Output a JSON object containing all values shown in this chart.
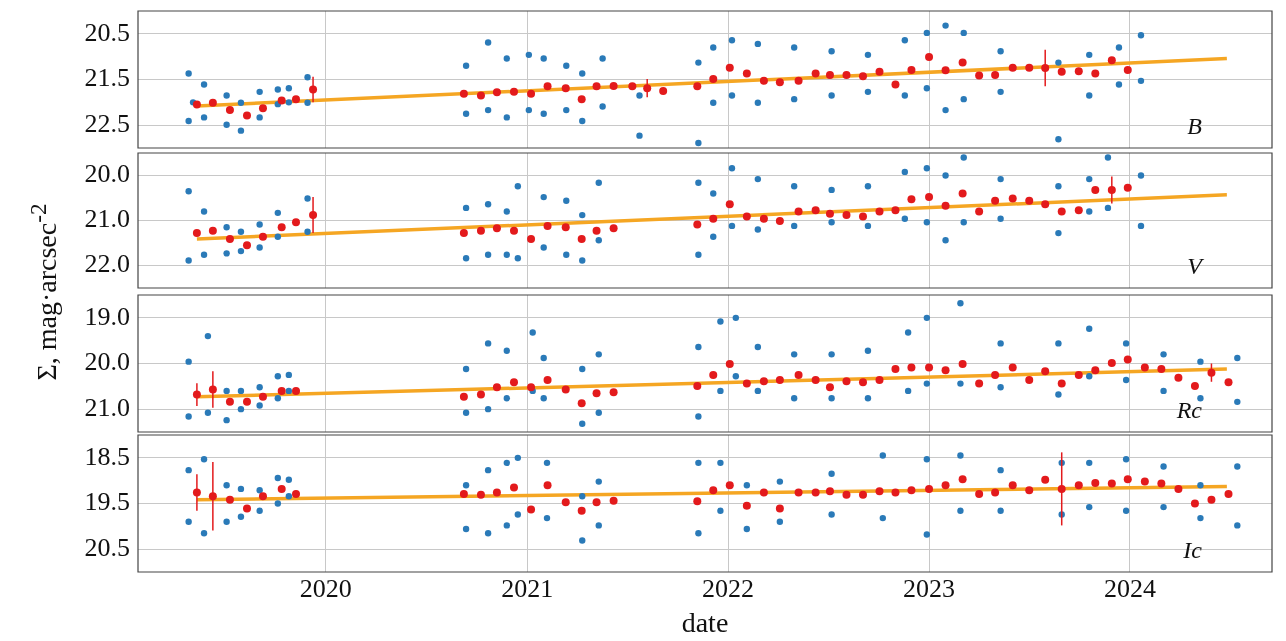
{
  "chart_data": [
    {
      "type": "scatter",
      "ylabel": "Σ, mag·arcsec$^{-2}$",
      "annotations": [
        "B"
      ],
      "xlim": [
        "2019-01-25",
        "2024-09-15"
      ],
      "xticks": [
        "2020",
        "2021",
        "2022",
        "2023",
        "2024"
      ],
      "ylim": [
        23.0,
        20.0
      ],
      "yticks": [
        20.5,
        21.5,
        22.5
      ],
      "grid": true,
      "marker": "circle",
      "tick_labels": "y",
      "series": [
        {
          "type": "scatter",
          "color": "#2a7ab8",
          "x": [
            "2019-04-27",
            "2019-04-27",
            "2019-05-05",
            "2019-05-25",
            "2019-05-25",
            "2019-07-05",
            "2019-07-05",
            "2019-07-31",
            "2019-07-31",
            "2019-09-03",
            "2019-09-03",
            "2019-10-06",
            "2019-10-06",
            "2019-10-26",
            "2019-10-26",
            "2019-11-29",
            "2019-11-29",
            "2020-09-12",
            "2020-09-12",
            "2020-10-22",
            "2020-10-22",
            "2020-11-25",
            "2020-11-25",
            "2021-01-04",
            "2021-01-04",
            "2021-01-31",
            "2021-01-31",
            "2021-03-13",
            "2021-03-13",
            "2021-04-11",
            "2021-04-11",
            "2021-05-18",
            "2021-05-18",
            "2021-07-24",
            "2021-07-24",
            "2021-11-08",
            "2021-11-08",
            "2021-12-05",
            "2021-12-05",
            "2022-01-08",
            "2022-01-08",
            "2022-02-24",
            "2022-02-24",
            "2022-05-01",
            "2022-05-01",
            "2022-07-08",
            "2022-07-08",
            "2022-09-12",
            "2022-09-12",
            "2022-11-18",
            "2022-11-18",
            "2022-12-28",
            "2022-12-28",
            "2023-01-31",
            "2023-01-31",
            "2023-03-05",
            "2023-03-05",
            "2023-05-11",
            "2023-05-11",
            "2023-08-24",
            "2023-08-24",
            "2023-10-19",
            "2023-10-19",
            "2023-12-12",
            "2023-12-12",
            "2024-01-21",
            "2024-01-21"
          ],
          "values": [
            21.37,
            22.41,
            22.0,
            21.61,
            22.33,
            21.85,
            22.49,
            22.01,
            22.62,
            21.77,
            22.33,
            21.72,
            22.04,
            21.69,
            22.0,
            21.45,
            22.01,
            21.2,
            22.25,
            20.69,
            22.17,
            21.04,
            22.33,
            20.96,
            22.17,
            21.04,
            22.25,
            21.2,
            22.17,
            21.37,
            22.41,
            21.04,
            22.09,
            21.85,
            22.73,
            21.13,
            22.89,
            20.8,
            22.01,
            20.64,
            21.85,
            20.72,
            22.01,
            20.8,
            21.93,
            20.88,
            21.85,
            20.96,
            21.77,
            20.64,
            21.85,
            20.48,
            21.69,
            20.32,
            22.17,
            20.48,
            21.93,
            20.88,
            21.77,
            21.13,
            22.81,
            20.96,
            21.85,
            20.8,
            21.61,
            20.53,
            21.53
          ]
        },
        {
          "type": "scatter",
          "color": "#e31a1c",
          "x": [
            "2019-05-12",
            "2019-06-10",
            "2019-07-11",
            "2019-08-11",
            "2019-09-09",
            "2019-10-13",
            "2019-11-08",
            "2019-12-09",
            "2020-09-08",
            "2020-10-09",
            "2020-11-07",
            "2020-12-08",
            "2021-01-08",
            "2021-02-07",
            "2021-03-12",
            "2021-04-10",
            "2021-05-07",
            "2021-06-07",
            "2021-07-11",
            "2021-08-07",
            "2021-09-05",
            "2021-11-06",
            "2021-12-05",
            "2022-01-04",
            "2022-02-04",
            "2022-03-07",
            "2022-04-05",
            "2022-05-09",
            "2022-06-09",
            "2022-07-05",
            "2022-08-04",
            "2022-09-03",
            "2022-10-03",
            "2022-11-01",
            "2022-11-30",
            "2023-01-01",
            "2023-01-31",
            "2023-03-03",
            "2023-04-02",
            "2023-05-01",
            "2023-06-02",
            "2023-07-02",
            "2023-07-31",
            "2023-08-30",
            "2023-09-30",
            "2023-10-30",
            "2023-11-29",
            "2023-12-28"
          ],
          "values": [
            22.05,
            22.01,
            22.17,
            22.29,
            22.13,
            21.96,
            21.93,
            21.72,
            21.81,
            21.85,
            21.78,
            21.77,
            21.81,
            21.65,
            21.69,
            21.93,
            21.65,
            21.64,
            21.65,
            21.69,
            21.75,
            21.65,
            21.49,
            21.24,
            21.37,
            21.53,
            21.56,
            21.53,
            21.37,
            21.4,
            21.4,
            21.43,
            21.33,
            21.61,
            21.29,
            21.01,
            21.3,
            21.13,
            21.41,
            21.4,
            21.24,
            21.24,
            21.25,
            21.33,
            21.32,
            21.37,
            21.08,
            21.29
          ],
          "errors": [
            null,
            null,
            null,
            null,
            null,
            null,
            null,
            0.28,
            null,
            null,
            null,
            null,
            null,
            null,
            null,
            null,
            null,
            null,
            null,
            0.2,
            null,
            null,
            null,
            null,
            null,
            null,
            null,
            null,
            null,
            null,
            null,
            null,
            null,
            null,
            null,
            null,
            null,
            null,
            null,
            null,
            null,
            null,
            0.4,
            null,
            null,
            null,
            null,
            null
          ]
        },
        {
          "type": "line",
          "color": "#f5a623",
          "marker": "none",
          "x": [
            "2019-05-12",
            "2024-06-25"
          ],
          "values": [
            22.08,
            21.04
          ]
        }
      ]
    },
    {
      "type": "scatter",
      "annotations": [
        "V"
      ],
      "xlim": [
        "2019-01-25",
        "2024-09-15"
      ],
      "xticks": [
        "2020",
        "2021",
        "2022",
        "2023",
        "2024"
      ],
      "ylim": [
        22.5,
        19.5
      ],
      "yticks": [
        {
          "value": 20,
          "label": "20.0"
        },
        {
          "value": 21,
          "label": "21.0"
        },
        {
          "value": 22,
          "label": "22.0"
        }
      ],
      "grid": true,
      "marker": "circle",
      "tick_labels": "y",
      "series": [
        {
          "type": "scatter",
          "color": "#2a7ab8",
          "x": [
            "2019-04-27",
            "2019-04-27",
            "2019-05-25",
            "2019-05-25",
            "2019-07-05",
            "2019-07-05",
            "2019-07-31",
            "2019-07-31",
            "2019-09-03",
            "2019-09-03",
            "2019-10-06",
            "2019-10-06",
            "2019-11-29",
            "2019-11-29",
            "2020-09-12",
            "2020-09-12",
            "2020-10-22",
            "2020-10-22",
            "2020-11-25",
            "2020-11-25",
            "2020-12-15",
            "2020-12-15",
            "2021-01-31",
            "2021-01-31",
            "2021-03-13",
            "2021-03-13",
            "2021-04-11",
            "2021-04-11",
            "2021-05-11",
            "2021-05-11",
            "2021-11-08",
            "2021-11-08",
            "2021-12-05",
            "2021-12-05",
            "2022-01-08",
            "2022-01-08",
            "2022-02-24",
            "2022-02-24",
            "2022-05-01",
            "2022-05-01",
            "2022-07-08",
            "2022-07-08",
            "2022-09-12",
            "2022-09-12",
            "2022-11-18",
            "2022-11-18",
            "2022-12-28",
            "2022-12-28",
            "2023-01-31",
            "2023-01-31",
            "2023-03-05",
            "2023-03-05",
            "2023-05-11",
            "2023-05-11",
            "2023-08-24",
            "2023-08-24",
            "2023-10-19",
            "2023-10-19",
            "2023-11-22",
            "2023-11-22",
            "2024-01-21",
            "2024-01-21"
          ],
          "values": [
            20.35,
            21.89,
            20.8,
            21.76,
            21.15,
            21.73,
            21.25,
            21.68,
            21.09,
            21.6,
            20.83,
            21.36,
            20.51,
            21.25,
            20.72,
            21.84,
            20.64,
            21.76,
            20.8,
            21.76,
            20.24,
            21.84,
            20.48,
            21.6,
            20.56,
            21.76,
            20.88,
            21.89,
            20.16,
            21.44,
            20.16,
            21.76,
            20.4,
            21.36,
            19.84,
            21.12,
            20.08,
            21.2,
            20.24,
            21.12,
            20.32,
            21.04,
            20.24,
            21.12,
            19.92,
            20.96,
            19.84,
            21.04,
            20.0,
            21.44,
            19.6,
            21.04,
            20.08,
            20.96,
            20.24,
            21.28,
            20.08,
            20.8,
            19.6,
            20.72,
            20.0,
            21.12
          ]
        },
        {
          "type": "scatter",
          "color": "#e31a1c",
          "x": [
            "2019-05-12",
            "2019-06-10",
            "2019-07-11",
            "2019-08-11",
            "2019-09-09",
            "2019-10-13",
            "2019-11-08",
            "2019-12-09",
            "2020-09-08",
            "2020-10-09",
            "2020-11-07",
            "2020-12-08",
            "2021-01-08",
            "2021-02-07",
            "2021-03-12",
            "2021-04-10",
            "2021-05-07",
            "2021-06-07",
            "2021-11-06",
            "2021-12-05",
            "2022-01-04",
            "2022-02-04",
            "2022-03-07",
            "2022-04-05",
            "2022-05-09",
            "2022-06-09",
            "2022-07-05",
            "2022-08-04",
            "2022-09-03",
            "2022-10-03",
            "2022-11-01",
            "2022-11-30",
            "2023-01-01",
            "2023-01-31",
            "2023-03-03",
            "2023-04-02",
            "2023-05-01",
            "2023-06-02",
            "2023-07-02",
            "2023-07-31",
            "2023-08-30",
            "2023-09-30",
            "2023-10-30",
            "2023-11-29",
            "2023-12-28"
          ],
          "values": [
            21.28,
            21.23,
            21.41,
            21.55,
            21.36,
            21.15,
            21.04,
            20.88,
            21.28,
            21.23,
            21.17,
            21.23,
            21.41,
            21.12,
            21.15,
            21.41,
            21.23,
            21.17,
            21.09,
            20.96,
            20.64,
            20.91,
            20.96,
            21.01,
            20.8,
            20.77,
            20.85,
            20.88,
            20.91,
            20.8,
            20.77,
            20.53,
            20.48,
            20.67,
            20.4,
            20.8,
            20.56,
            20.51,
            20.56,
            20.64,
            20.8,
            20.77,
            20.32,
            20.32,
            20.27
          ],
          "errors": [
            null,
            null,
            null,
            null,
            null,
            null,
            null,
            0.4,
            null,
            null,
            null,
            null,
            null,
            null,
            null,
            null,
            null,
            null,
            null,
            null,
            null,
            null,
            null,
            null,
            null,
            null,
            null,
            null,
            null,
            null,
            null,
            null,
            null,
            null,
            null,
            null,
            null,
            null,
            null,
            null,
            null,
            null,
            null,
            0.3,
            null
          ]
        },
        {
          "type": "line",
          "color": "#f5a623",
          "marker": "none",
          "x": [
            "2019-05-12",
            "2024-06-25"
          ],
          "values": [
            21.41,
            20.43
          ]
        }
      ]
    },
    {
      "type": "scatter",
      "annotations": [
        "Rc"
      ],
      "xlim": [
        "2019-01-25",
        "2024-09-15"
      ],
      "xticks": [
        "2020",
        "2021",
        "2022",
        "2023",
        "2024"
      ],
      "ylim": [
        21.5,
        18.5
      ],
      "yticks": [
        {
          "value": 19,
          "label": "19.0"
        },
        {
          "value": 20,
          "label": "20.0"
        },
        {
          "value": 21,
          "label": "21.0"
        }
      ],
      "grid": true,
      "marker": "circle",
      "tick_labels": "y",
      "series": [
        {
          "type": "scatter",
          "color": "#2a7ab8",
          "x": [
            "2019-04-27",
            "2019-04-27",
            "2019-06-01",
            "2019-06-01",
            "2019-07-05",
            "2019-07-05",
            "2019-07-31",
            "2019-07-31",
            "2019-09-03",
            "2019-09-03",
            "2019-10-06",
            "2019-10-06",
            "2019-10-26",
            "2019-10-26",
            "2020-09-12",
            "2020-09-12",
            "2020-10-22",
            "2020-10-22",
            "2020-11-25",
            "2020-11-25",
            "2021-01-11",
            "2021-01-11",
            "2021-01-31",
            "2021-01-31",
            "2021-04-11",
            "2021-04-11",
            "2021-05-11",
            "2021-05-11",
            "2021-11-08",
            "2021-11-08",
            "2021-12-18",
            "2021-12-18",
            "2022-01-15",
            "2022-01-15",
            "2022-02-24",
            "2022-02-24",
            "2022-05-01",
            "2022-05-01",
            "2022-07-08",
            "2022-07-08",
            "2022-09-12",
            "2022-09-12",
            "2022-11-24",
            "2022-11-24",
            "2022-12-28",
            "2022-12-28",
            "2023-02-27",
            "2023-02-27",
            "2023-05-11",
            "2023-05-11",
            "2023-08-24",
            "2023-08-24",
            "2023-10-19",
            "2023-10-19",
            "2023-12-25",
            "2023-12-25",
            "2024-03-02",
            "2024-03-02",
            "2024-05-08",
            "2024-05-08",
            "2024-07-14",
            "2024-07-14"
          ],
          "values": [
            19.96,
            21.16,
            19.4,
            21.08,
            20.6,
            21.24,
            20.6,
            21.0,
            20.52,
            20.92,
            20.28,
            20.76,
            20.25,
            20.6,
            20.12,
            21.08,
            19.56,
            21.0,
            19.72,
            20.76,
            19.32,
            20.6,
            19.88,
            20.76,
            20.12,
            21.32,
            19.8,
            21.08,
            19.64,
            21.16,
            19.08,
            20.6,
            19.0,
            20.28,
            19.64,
            20.6,
            19.8,
            20.76,
            19.8,
            20.76,
            19.72,
            20.76,
            19.32,
            20.6,
            19.0,
            20.44,
            18.68,
            20.44,
            19.56,
            20.52,
            19.56,
            20.68,
            19.24,
            20.28,
            19.56,
            20.36,
            19.8,
            20.6,
            19.96,
            20.76,
            19.88,
            20.84
          ]
        },
        {
          "type": "scatter",
          "color": "#e31a1c",
          "x": [
            "2019-05-12",
            "2019-06-10",
            "2019-07-11",
            "2019-08-11",
            "2019-09-09",
            "2019-10-13",
            "2019-11-08",
            "2020-09-08",
            "2020-10-09",
            "2020-11-07",
            "2020-12-08",
            "2021-01-08",
            "2021-02-07",
            "2021-03-12",
            "2021-04-10",
            "2021-05-07",
            "2021-06-07",
            "2021-11-06",
            "2021-12-05",
            "2022-01-04",
            "2022-02-04",
            "2022-03-07",
            "2022-04-05",
            "2022-05-09",
            "2022-06-09",
            "2022-07-05",
            "2022-08-04",
            "2022-09-03",
            "2022-10-03",
            "2022-11-01",
            "2022-11-30",
            "2023-01-01",
            "2023-01-31",
            "2023-03-03",
            "2023-04-02",
            "2023-05-01",
            "2023-06-02",
            "2023-07-02",
            "2023-07-31",
            "2023-08-30",
            "2023-09-30",
            "2023-10-30",
            "2023-11-29",
            "2023-12-28",
            "2024-01-28",
            "2024-02-27",
            "2024-03-29",
            "2024-04-28",
            "2024-05-28",
            "2024-06-28"
          ],
          "values": [
            20.68,
            20.57,
            20.84,
            20.84,
            20.73,
            20.6,
            20.6,
            20.73,
            20.68,
            20.52,
            20.41,
            20.52,
            20.36,
            20.57,
            20.87,
            20.65,
            20.63,
            20.49,
            20.25,
            20.01,
            20.44,
            20.39,
            20.36,
            20.25,
            20.36,
            20.52,
            20.39,
            20.41,
            20.36,
            20.12,
            20.09,
            20.09,
            20.15,
            20.01,
            20.44,
            20.25,
            20.09,
            20.36,
            20.17,
            20.44,
            20.25,
            20.15,
            19.99,
            19.91,
            20.09,
            20.12,
            20.31,
            20.49,
            20.2,
            20.41
          ],
          "errors": [
            0.25,
            0.4,
            null,
            null,
            null,
            null,
            null,
            null,
            null,
            null,
            null,
            null,
            null,
            null,
            null,
            null,
            null,
            null,
            null,
            null,
            null,
            null,
            null,
            null,
            null,
            null,
            null,
            null,
            null,
            null,
            null,
            null,
            null,
            null,
            null,
            null,
            null,
            null,
            null,
            null,
            null,
            null,
            null,
            null,
            null,
            null,
            null,
            null,
            0.2,
            null
          ]
        },
        {
          "type": "line",
          "color": "#f5a623",
          "marker": "none",
          "x": [
            "2019-05-12",
            "2024-06-25"
          ],
          "values": [
            20.73,
            20.12
          ]
        }
      ]
    },
    {
      "type": "scatter",
      "xlabel": "date",
      "annotations": [
        "Ic"
      ],
      "xlim": [
        "2019-01-25",
        "2024-09-15"
      ],
      "xticks": [
        "2020",
        "2021",
        "2022",
        "2023",
        "2024"
      ],
      "ylim": [
        21.0,
        18.0
      ],
      "yticks": [
        18.5,
        19.5,
        20.5
      ],
      "grid": true,
      "marker": "circle",
      "series": [
        {
          "type": "scatter",
          "color": "#2a7ab8",
          "x": [
            "2019-04-27",
            "2019-04-27",
            "2019-05-25",
            "2019-05-25",
            "2019-07-05",
            "2019-07-05",
            "2019-07-31",
            "2019-07-31",
            "2019-09-03",
            "2019-09-03",
            "2019-10-06",
            "2019-10-06",
            "2019-10-26",
            "2019-10-26",
            "2020-09-12",
            "2020-09-12",
            "2020-10-22",
            "2020-10-22",
            "2020-11-25",
            "2020-11-25",
            "2020-12-15",
            "2020-12-15",
            "2021-02-06",
            "2021-02-06",
            "2021-04-11",
            "2021-04-11",
            "2021-05-11",
            "2021-05-11",
            "2021-11-08",
            "2021-11-08",
            "2021-12-18",
            "2021-12-18",
            "2022-02-04",
            "2022-02-04",
            "2022-04-05",
            "2022-04-05",
            "2022-07-08",
            "2022-07-08",
            "2022-10-09",
            "2022-10-09",
            "2022-12-28",
            "2022-12-28",
            "2023-02-27",
            "2023-02-27",
            "2023-05-11",
            "2023-05-11",
            "2023-08-30",
            "2023-08-30",
            "2023-10-19",
            "2023-10-19",
            "2023-12-25",
            "2023-12-25",
            "2024-03-02",
            "2024-03-02",
            "2024-05-08",
            "2024-05-08",
            "2024-07-14",
            "2024-07-14"
          ],
          "values": [
            18.77,
            19.9,
            18.53,
            20.15,
            19.1,
            19.9,
            19.18,
            19.79,
            19.21,
            19.66,
            18.94,
            19.5,
            18.98,
            19.34,
            19.1,
            20.06,
            18.77,
            20.15,
            18.61,
            19.98,
            18.5,
            19.74,
            18.61,
            19.82,
            19.34,
            20.31,
            19.02,
            19.98,
            18.61,
            20.15,
            18.61,
            19.66,
            19.1,
            20.06,
            19.02,
            19.9,
            18.85,
            19.74,
            18.45,
            19.82,
            18.53,
            20.18,
            18.45,
            19.66,
            18.77,
            19.66,
            18.61,
            19.74,
            18.61,
            19.58,
            18.53,
            19.66,
            18.69,
            19.58,
            19.1,
            19.82,
            18.69,
            19.98
          ]
        },
        {
          "type": "scatter",
          "color": "#e31a1c",
          "x": [
            "2019-05-12",
            "2019-06-10",
            "2019-07-11",
            "2019-08-11",
            "2019-09-09",
            "2019-10-13",
            "2019-11-08",
            "2020-09-08",
            "2020-10-09",
            "2020-11-07",
            "2020-12-08",
            "2021-01-08",
            "2021-02-07",
            "2021-03-12",
            "2021-04-10",
            "2021-05-07",
            "2021-06-07",
            "2021-11-06",
            "2021-12-05",
            "2022-01-04",
            "2022-02-04",
            "2022-03-07",
            "2022-04-05",
            "2022-05-09",
            "2022-06-09",
            "2022-07-05",
            "2022-08-04",
            "2022-09-03",
            "2022-10-03",
            "2022-11-01",
            "2022-11-30",
            "2023-01-01",
            "2023-01-31",
            "2023-03-03",
            "2023-04-02",
            "2023-05-01",
            "2023-06-02",
            "2023-07-02",
            "2023-07-31",
            "2023-08-30",
            "2023-09-30",
            "2023-10-30",
            "2023-11-29",
            "2023-12-28",
            "2024-01-28",
            "2024-02-27",
            "2024-03-29",
            "2024-04-28",
            "2024-05-28",
            "2024-06-28"
          ],
          "values": [
            19.26,
            19.34,
            19.42,
            19.61,
            19.34,
            19.18,
            19.29,
            19.29,
            19.31,
            19.26,
            19.15,
            19.63,
            19.1,
            19.47,
            19.66,
            19.47,
            19.44,
            19.45,
            19.21,
            19.1,
            19.55,
            19.26,
            19.61,
            19.26,
            19.26,
            19.23,
            19.31,
            19.31,
            19.23,
            19.26,
            19.21,
            19.18,
            19.1,
            18.97,
            19.29,
            19.26,
            19.1,
            19.21,
            18.98,
            19.18,
            19.1,
            19.05,
            19.06,
            18.97,
            19.02,
            19.06,
            19.18,
            19.5,
            19.42,
            19.29
          ],
          "errors": [
            0.4,
            0.75,
            null,
            null,
            null,
            null,
            null,
            null,
            null,
            null,
            null,
            null,
            null,
            null,
            null,
            null,
            null,
            null,
            null,
            null,
            null,
            null,
            null,
            null,
            null,
            null,
            null,
            null,
            null,
            null,
            null,
            null,
            null,
            null,
            null,
            null,
            null,
            null,
            null,
            0.8,
            null,
            null,
            null,
            null,
            null,
            null,
            null,
            null,
            null,
            null
          ]
        },
        {
          "type": "line",
          "color": "#f5a623",
          "marker": "none",
          "x": [
            "2019-05-12",
            "2024-06-25"
          ],
          "values": [
            19.42,
            19.13
          ]
        }
      ]
    }
  ]
}
